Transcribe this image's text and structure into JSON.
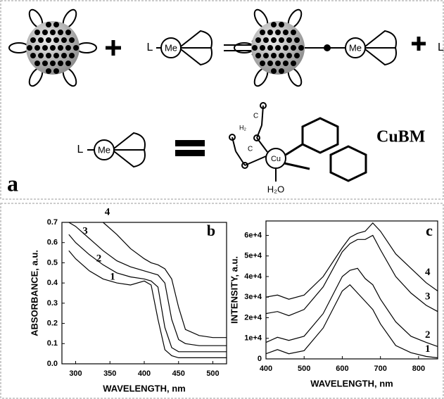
{
  "diagram": {
    "ligand_L": "L",
    "metal": "Me",
    "product_metal": "Me",
    "trailing_L": "L",
    "eq_L": "L",
    "eq_metal": "Me",
    "complex_metal": "Cu",
    "water": "H₂O",
    "chain_atoms": [
      "C",
      "C",
      "H₂"
    ],
    "complex_name": "CuBM",
    "panel_label": "a"
  },
  "chart_data": [
    {
      "type": "line",
      "panel_label": "b",
      "xlabel": "WAVELENGTH, nm",
      "ylabel": "ABSORBANCE, a.u.",
      "x": [
        290,
        300,
        320,
        340,
        360,
        380,
        400,
        410,
        420,
        430,
        440,
        450,
        460,
        480,
        500,
        520
      ],
      "xlim": [
        280,
        520
      ],
      "xticks": [
        300,
        350,
        400,
        450,
        500
      ],
      "ylim": [
        0,
        0.7
      ],
      "yticks": [
        {
          "value": 0,
          "label": "0.0"
        },
        0.1,
        0.2,
        0.3,
        0.4,
        0.5,
        0.6,
        0.7
      ],
      "series": [
        {
          "name": "1",
          "color": "#000000",
          "values": [
            0.56,
            0.52,
            0.46,
            0.42,
            0.4,
            0.39,
            0.41,
            0.39,
            0.22,
            0.07,
            0.04,
            0.03,
            0.03,
            0.03,
            0.03,
            0.03
          ]
        },
        {
          "name": "2",
          "color": "#000000",
          "values": [
            0.64,
            0.6,
            0.54,
            0.49,
            0.45,
            0.43,
            0.42,
            0.41,
            0.38,
            0.18,
            0.08,
            0.06,
            0.06,
            0.06,
            0.06,
            0.06
          ]
        },
        {
          "name": "3",
          "color": "#000000",
          "values": [
            0.7,
            0.68,
            0.62,
            0.56,
            0.51,
            0.48,
            0.46,
            0.45,
            0.44,
            0.4,
            0.22,
            0.12,
            0.1,
            0.09,
            0.09,
            0.09
          ]
        },
        {
          "name": "4",
          "color": "#000000",
          "values": [
            null,
            null,
            null,
            0.7,
            0.64,
            0.57,
            0.52,
            0.5,
            0.49,
            0.47,
            0.42,
            0.28,
            0.17,
            0.14,
            0.13,
            0.13
          ]
        }
      ]
    },
    {
      "type": "line",
      "panel_label": "c",
      "xlabel": "WAVELENGTH, nm",
      "ylabel": "INTENSITY, a.u.",
      "x": [
        400,
        430,
        460,
        500,
        550,
        600,
        620,
        640,
        660,
        680,
        700,
        740,
        780,
        820,
        850
      ],
      "xlim": [
        400,
        850
      ],
      "xticks": [
        400,
        500,
        600,
        700,
        800
      ],
      "ylim": [
        0,
        67000
      ],
      "yticks": [
        0,
        {
          "value": 10000,
          "label": "1e+4"
        },
        {
          "value": 20000,
          "label": "2e+4"
        },
        {
          "value": 30000,
          "label": "3e+4"
        },
        {
          "value": 40000,
          "label": "4e+4"
        },
        {
          "value": 50000,
          "label": "5e+4"
        },
        {
          "value": 60000,
          "label": "6e+4"
        }
      ],
      "series": [
        {
          "name": "1",
          "color": "#000000",
          "values": [
            2500,
            4500,
            2500,
            4000,
            15000,
            33000,
            36000,
            32000,
            28000,
            24000,
            17000,
            6500,
            3000,
            1200,
            500
          ]
        },
        {
          "name": "2",
          "color": "#000000",
          "values": [
            8000,
            10500,
            9000,
            11000,
            22000,
            40000,
            43000,
            44000,
            39000,
            36000,
            29000,
            18000,
            11000,
            8000,
            6000
          ]
        },
        {
          "name": "3",
          "color": "#000000",
          "values": [
            22000,
            23000,
            21000,
            24000,
            35000,
            52000,
            56000,
            58000,
            58000,
            60000,
            53000,
            40000,
            32000,
            26000,
            23000
          ]
        },
        {
          "name": "4",
          "color": "#000000",
          "values": [
            30000,
            31000,
            29000,
            31000,
            40000,
            54000,
            59000,
            61000,
            62000,
            66000,
            62000,
            51000,
            44000,
            37000,
            33000
          ]
        }
      ]
    }
  ]
}
